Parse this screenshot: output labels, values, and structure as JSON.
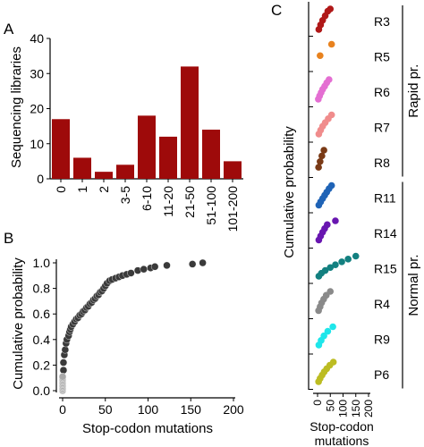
{
  "panels": {
    "a": "A",
    "b": "B",
    "c": "C"
  },
  "chart_data": [
    {
      "panel": "A",
      "type": "bar",
      "ylabel": "Sequencing libraries",
      "xlabel": "",
      "ylim": [
        0,
        40
      ],
      "yticks": [
        0,
        10,
        20,
        30,
        40
      ],
      "categories": [
        "0",
        "1",
        "2",
        "3-5",
        "6-10",
        "11-20",
        "21-50",
        "51-100",
        "101-200"
      ],
      "values": [
        17,
        6,
        2,
        4,
        18,
        12,
        32,
        14,
        5
      ],
      "color": "#9e0a0a"
    },
    {
      "panel": "B",
      "type": "scatter",
      "xlabel": "Stop-codon mutations",
      "ylabel": "Cumulative probability",
      "xlim": [
        0,
        200
      ],
      "ylim": [
        0,
        1.0
      ],
      "xticks": [
        0,
        50,
        100,
        150,
        200
      ],
      "yticks": [
        "0.0",
        "0.2",
        "0.4",
        "0.6",
        "0.8",
        "1.0"
      ],
      "series": [
        {
          "color": "#3a3a3a",
          "x": [
            1,
            1,
            2,
            3,
            4,
            5,
            7,
            8,
            9,
            10,
            12,
            14,
            16,
            18,
            20,
            22,
            24,
            26,
            28,
            30,
            32,
            34,
            36,
            38,
            40,
            42,
            44,
            46,
            48,
            50,
            52,
            55,
            58,
            62,
            66,
            70,
            75,
            80,
            88,
            95,
            103,
            108,
            122,
            152,
            164
          ],
          "y": [
            0.16,
            0.22,
            0.28,
            0.32,
            0.37,
            0.4,
            0.43,
            0.46,
            0.48,
            0.5,
            0.52,
            0.54,
            0.56,
            0.57,
            0.59,
            0.6,
            0.62,
            0.63,
            0.65,
            0.66,
            0.68,
            0.69,
            0.71,
            0.72,
            0.74,
            0.75,
            0.77,
            0.78,
            0.8,
            0.82,
            0.84,
            0.86,
            0.87,
            0.88,
            0.89,
            0.9,
            0.91,
            0.92,
            0.94,
            0.95,
            0.96,
            0.97,
            0.98,
            0.99,
            1.0
          ]
        },
        {
          "color": "#aaaaaa",
          "x": [
            0,
            0,
            0,
            0,
            0,
            0,
            0,
            0,
            0,
            0,
            0,
            0
          ],
          "y": [
            0.0,
            0.01,
            0.02,
            0.03,
            0.04,
            0.05,
            0.06,
            0.07,
            0.08,
            0.09,
            0.1,
            0.11
          ]
        }
      ]
    },
    {
      "panel": "C",
      "type": "scatter",
      "xlabel": "Stop-codon\nmutations",
      "ylabel": "Cumulative probability",
      "xticks": [
        0,
        50,
        100,
        150,
        200
      ],
      "xlim": [
        0,
        200
      ],
      "groups": [
        {
          "name": "Rapid pr.",
          "rows": [
            "R3",
            "R5",
            "R6",
            "R7",
            "R8"
          ]
        },
        {
          "name": "Normal pr.",
          "rows": [
            "R11",
            "R14",
            "R15",
            "R4",
            "R9",
            "P6"
          ]
        }
      ],
      "series": [
        {
          "name": "R3",
          "color": "#b01818",
          "x": [
            5,
            12,
            20,
            30,
            40,
            50
          ],
          "y": [
            0.1,
            0.3,
            0.5,
            0.7,
            0.9,
            1.0
          ]
        },
        {
          "name": "R5",
          "color": "#e8821e",
          "x": [
            10,
            55
          ],
          "y": [
            0.5,
            1.0
          ]
        },
        {
          "name": "R6",
          "color": "#e46ed2",
          "x": [
            3,
            8,
            14,
            20,
            28,
            36,
            45
          ],
          "y": [
            0.14,
            0.28,
            0.43,
            0.57,
            0.71,
            0.86,
            1.0
          ]
        },
        {
          "name": "R7",
          "color": "#f08c8c",
          "x": [
            5,
            12,
            20,
            30,
            42,
            55
          ],
          "y": [
            0.16,
            0.33,
            0.5,
            0.66,
            0.83,
            1.0
          ]
        },
        {
          "name": "R8",
          "color": "#7a3a16",
          "x": [
            4,
            10,
            17,
            25
          ],
          "y": [
            0.25,
            0.5,
            0.75,
            1.0
          ]
        },
        {
          "name": "R11",
          "color": "#1f63b6",
          "x": [
            5,
            12,
            20,
            28,
            36,
            45,
            55
          ],
          "y": [
            0.14,
            0.28,
            0.43,
            0.57,
            0.71,
            0.86,
            1.0
          ]
        },
        {
          "name": "R14",
          "color": "#6816b0",
          "x": [
            5,
            12,
            20,
            28,
            38,
            70
          ],
          "y": [
            0.16,
            0.33,
            0.5,
            0.66,
            0.83,
            1.0
          ]
        },
        {
          "name": "R15",
          "color": "#138080",
          "x": [
            5,
            15,
            30,
            50,
            70,
            95,
            120,
            150
          ],
          "y": [
            0.12,
            0.25,
            0.37,
            0.5,
            0.62,
            0.75,
            0.87,
            1.0
          ]
        },
        {
          "name": "R4",
          "color": "#8a8a8a",
          "x": [
            4,
            10,
            16,
            24,
            34,
            50
          ],
          "y": [
            0.16,
            0.33,
            0.5,
            0.66,
            0.83,
            1.0
          ]
        },
        {
          "name": "R9",
          "color": "#1ee6ea",
          "x": [
            5,
            14,
            25,
            40,
            60
          ],
          "y": [
            0.2,
            0.4,
            0.6,
            0.8,
            1.0
          ]
        },
        {
          "name": "P6",
          "color": "#bcbc22",
          "x": [
            4,
            10,
            18,
            26,
            36,
            48,
            62
          ],
          "y": [
            0.14,
            0.28,
            0.43,
            0.57,
            0.71,
            0.86,
            1.0
          ]
        }
      ]
    }
  ]
}
